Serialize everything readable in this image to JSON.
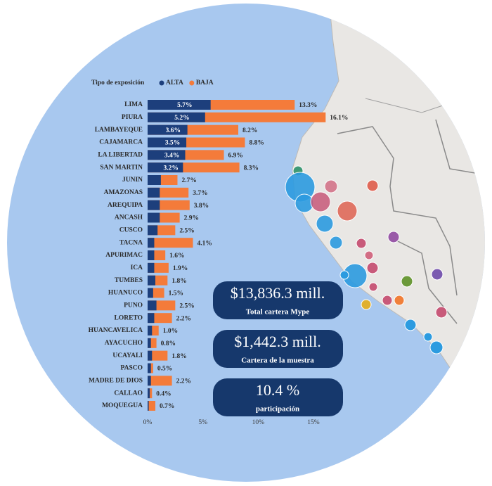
{
  "chart_data": {
    "type": "bar",
    "orientation": "horizontal",
    "overlap": true,
    "legend_title": "Tipo de exposición",
    "categories": [
      "LIMA",
      "PIURA",
      "LAMBAYEQUE",
      "CAJAMARCA",
      "LA LIBERTAD",
      "SAN MARTIN",
      "JUNIN",
      "AMAZONAS",
      "AREQUIPA",
      "ANCASH",
      "CUSCO",
      "TACNA",
      "APURIMAC",
      "ICA",
      "TUMBES",
      "HUANUCO",
      "PUNO",
      "LORETO",
      "HUANCAVELICA",
      "AYACUCHO",
      "UCAYALI",
      "PASCO",
      "MADRE DE DIOS",
      "CALLAO",
      "MOQUEGUA"
    ],
    "series": [
      {
        "name": "ALTA",
        "color": "#1d3f7c",
        "values": [
          5.7,
          5.2,
          3.6,
          3.5,
          3.4,
          3.2,
          1.2,
          1.1,
          1.1,
          1.1,
          0.9,
          0.6,
          0.6,
          0.6,
          0.7,
          0.5,
          0.8,
          0.6,
          0.4,
          0.3,
          0.4,
          0.3,
          0.3,
          0.2,
          0.1
        ],
        "value_labels": [
          "5.7%",
          "5.2%",
          "3.6%",
          "3.5%",
          "3.4%",
          "3.2%",
          null,
          null,
          null,
          null,
          null,
          null,
          null,
          null,
          null,
          null,
          null,
          null,
          null,
          null,
          null,
          null,
          null,
          null,
          null
        ]
      },
      {
        "name": "BAJA",
        "color": "#f47b3a",
        "values": [
          13.3,
          16.1,
          8.2,
          8.8,
          6.9,
          8.3,
          2.7,
          3.7,
          3.8,
          2.9,
          2.5,
          4.1,
          1.6,
          1.9,
          1.8,
          1.5,
          2.5,
          2.2,
          1.0,
          0.8,
          1.8,
          0.5,
          2.2,
          0.4,
          0.7
        ],
        "value_labels": [
          "13.3%",
          "16.1%",
          "8.2%",
          "8.8%",
          "6.9%",
          "8.3%",
          "2.7%",
          "3.7%",
          "3.8%",
          "2.9%",
          "2.5%",
          "4.1%",
          "1.6%",
          "1.9%",
          "1.8%",
          "1.5%",
          "2.5%",
          "2.2%",
          "1.0%",
          "0.8%",
          "1.8%",
          "0.5%",
          "2.2%",
          "0.4%",
          "0.7%"
        ]
      }
    ],
    "xlim": [
      0,
      16.5
    ],
    "xticks": [
      {
        "value": 0,
        "label": "0%"
      },
      {
        "value": 5,
        "label": "5%"
      },
      {
        "value": 10,
        "label": "10%"
      },
      {
        "value": 15,
        "label": "15%"
      }
    ],
    "annotations": [
      {
        "value": "$13,836.3 mill.",
        "label": "Total cartera Mype"
      },
      {
        "value": "$1,442.3 mill.",
        "label": "Cartera de la muestra"
      },
      {
        "value": "10.4 %",
        "label": "participación"
      }
    ]
  }
}
